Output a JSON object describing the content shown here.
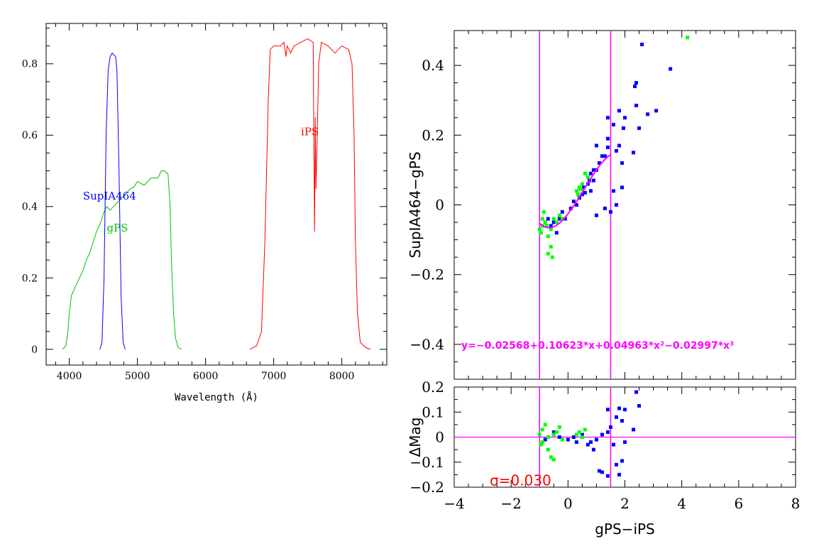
{
  "chart_data": [
    {
      "type": "line",
      "xlabel": "Wavelength (Å)",
      "ylabel": "",
      "xlim": [
        3660,
        8660
      ],
      "ylim": [
        -0.044,
        0.913
      ],
      "xticks": [
        4000,
        5000,
        6000,
        7000,
        8000
      ],
      "yticks": [
        0,
        0.2,
        0.4,
        0.6,
        0.8
      ],
      "ytick_labels": [
        "0",
        "0.2",
        "0.4",
        "0.6",
        "0.8"
      ],
      "grid": false,
      "series": [
        {
          "name": "gPS",
          "color": "#00c000",
          "label_at": [
            4550,
            0.33
          ],
          "x": [
            3900,
            3950,
            3980,
            4000,
            4030,
            4100,
            4200,
            4250,
            4300,
            4350,
            4400,
            4450,
            4500,
            4550,
            4600,
            4650,
            4700,
            4800,
            4900,
            4950,
            5000,
            5100,
            5200,
            5300,
            5350,
            5400,
            5450,
            5480,
            5500,
            5530,
            5560,
            5600,
            5650
          ],
          "y": [
            0,
            0.01,
            0.05,
            0.1,
            0.15,
            0.18,
            0.22,
            0.25,
            0.27,
            0.3,
            0.33,
            0.35,
            0.38,
            0.4,
            0.39,
            0.4,
            0.41,
            0.43,
            0.45,
            0.455,
            0.47,
            0.46,
            0.48,
            0.48,
            0.5,
            0.5,
            0.49,
            0.4,
            0.25,
            0.1,
            0.03,
            0.005,
            0
          ]
        },
        {
          "name": "SupIA464",
          "color": "#0000ff",
          "label_at": [
            4200,
            0.42
          ],
          "x": [
            4450,
            4480,
            4510,
            4540,
            4570,
            4600,
            4630,
            4680,
            4700,
            4730,
            4760,
            4790,
            4820
          ],
          "y": [
            0,
            0.02,
            0.2,
            0.6,
            0.78,
            0.82,
            0.83,
            0.82,
            0.78,
            0.5,
            0.15,
            0.02,
            0
          ]
        },
        {
          "name": "iPS",
          "color": "#ff0000",
          "label_at": [
            7400,
            0.6
          ],
          "x": [
            6650,
            6750,
            6820,
            6870,
            6920,
            6950,
            7000,
            7100,
            7150,
            7180,
            7200,
            7250,
            7300,
            7400,
            7500,
            7580,
            7590,
            7600,
            7610,
            7620,
            7640,
            7660,
            7700,
            7800,
            7900,
            8000,
            8100,
            8150,
            8180,
            8200,
            8230,
            8270,
            8350,
            8420
          ],
          "y": [
            0,
            0.01,
            0.05,
            0.3,
            0.7,
            0.84,
            0.85,
            0.85,
            0.86,
            0.82,
            0.85,
            0.83,
            0.85,
            0.86,
            0.87,
            0.86,
            0.55,
            0.33,
            0.65,
            0.45,
            0.6,
            0.8,
            0.86,
            0.85,
            0.83,
            0.85,
            0.84,
            0.8,
            0.6,
            0.3,
            0.1,
            0.02,
            0.005,
            0
          ]
        }
      ]
    },
    {
      "type": "scatter",
      "xlabel": "",
      "ylabel": "SupIA464−gPS",
      "xlim": [
        -4,
        8
      ],
      "ylim": [
        -0.5,
        0.5
      ],
      "yticks": [
        -0.4,
        -0.2,
        0,
        0.2,
        0.4
      ],
      "ytick_labels": [
        "−0.4",
        "−0.2",
        "0",
        "0.2",
        "0.4"
      ],
      "vlines": [
        -1,
        1.5
      ],
      "line_color": "#ff00ff",
      "fit": {
        "coefficients": [
          -0.02568,
          0.10623,
          0.04963,
          -0.02997
        ],
        "range": [
          -1,
          1.5
        ],
        "label": "y=−0.02568+0.10623*x+0.04963*x²−0.02997*x³",
        "label_at": [
          -3.75,
          -0.4
        ]
      },
      "series": [
        {
          "color": "#0000ff",
          "points": [
            [
              2.6,
              0.46
            ],
            [
              3.6,
              0.39
            ],
            [
              2.4,
              0.35
            ],
            [
              2.35,
              0.34
            ],
            [
              3.1,
              0.27
            ],
            [
              2.8,
              0.26
            ],
            [
              1.8,
              0.27
            ],
            [
              2.4,
              0.285
            ],
            [
              2.0,
              0.25
            ],
            [
              1.4,
              0.25
            ],
            [
              1.6,
              0.23
            ],
            [
              2.5,
              0.22
            ],
            [
              1.95,
              0.22
            ],
            [
              1.4,
              0.19
            ],
            [
              1.8,
              0.17
            ],
            [
              2.3,
              0.15
            ],
            [
              1.4,
              0.165
            ],
            [
              1.7,
              0.155
            ],
            [
              1.0,
              0.17
            ],
            [
              1.2,
              0.14
            ],
            [
              1.3,
              0.14
            ],
            [
              1.9,
              0.12
            ],
            [
              0.9,
              0.1
            ],
            [
              1.0,
              0.1
            ],
            [
              1.1,
              0.12
            ],
            [
              0.8,
              0.09
            ],
            [
              0.7,
              0.06
            ],
            [
              0.75,
              0.07
            ],
            [
              0.9,
              0.07
            ],
            [
              0.8,
              0.04
            ],
            [
              1.6,
              0.04
            ],
            [
              1.9,
              0.05
            ],
            [
              0.5,
              0.03
            ],
            [
              0.55,
              0.05
            ],
            [
              0.6,
              0.035
            ],
            [
              0.2,
              0.01
            ],
            [
              0.1,
              -0.01
            ],
            [
              -0.2,
              -0.02
            ],
            [
              -0.3,
              -0.04
            ],
            [
              -0.5,
              -0.05
            ],
            [
              -0.6,
              -0.06
            ],
            [
              -0.4,
              -0.08
            ],
            [
              -0.1,
              -0.04
            ],
            [
              1.3,
              -0.01
            ],
            [
              1.5,
              -0.02
            ],
            [
              1.0,
              -0.03
            ],
            [
              1.7,
              0.0
            ],
            [
              0.4,
              0.02
            ],
            [
              0.3,
              0.0
            ],
            [
              -0.7,
              -0.04
            ]
          ]
        },
        {
          "color": "#00ff00",
          "points": [
            [
              4.2,
              0.48
            ],
            [
              0.6,
              0.09
            ],
            [
              0.4,
              0.05
            ],
            [
              0.3,
              0.04
            ],
            [
              0.35,
              0.03
            ],
            [
              0.5,
              0.06
            ],
            [
              -0.3,
              -0.03
            ],
            [
              -0.5,
              -0.04
            ],
            [
              -0.8,
              -0.05
            ],
            [
              -0.9,
              -0.06
            ],
            [
              -1.0,
              -0.07
            ],
            [
              -0.95,
              -0.08
            ],
            [
              -0.7,
              -0.09
            ],
            [
              -0.6,
              -0.12
            ],
            [
              -0.55,
              -0.15
            ],
            [
              -0.7,
              -0.14
            ],
            [
              -0.85,
              -0.02
            ],
            [
              -0.6,
              -0.07
            ],
            [
              -0.4,
              -0.05
            ],
            [
              -0.2,
              -0.04
            ],
            [
              -0.9,
              -0.04
            ],
            [
              -0.75,
              -0.06
            ],
            [
              0.7,
              0.08
            ],
            [
              0.45,
              0.045
            ]
          ]
        }
      ]
    },
    {
      "type": "scatter",
      "xlabel": "gPS−iPS",
      "ylabel": "ΔMag",
      "xlim": [
        -4,
        8
      ],
      "ylim": [
        -0.2,
        0.2
      ],
      "xticks": [
        -4,
        -2,
        0,
        2,
        4,
        6,
        8
      ],
      "xtick_labels": [
        "−4",
        "−2",
        "0",
        "2",
        "4",
        "6",
        "8"
      ],
      "yticks": [
        -0.2,
        -0.1,
        0,
        0.1,
        0.2
      ],
      "ytick_labels": [
        "−0.2",
        "−0.1",
        "0",
        "0.1",
        "0.2"
      ],
      "vlines": [
        -1,
        1.5
      ],
      "hline": 0,
      "line_color": "#ff00ff",
      "annotation": {
        "text": "σ=0.030",
        "color": "#ff0000",
        "at": [
          -2.75,
          -0.17
        ]
      },
      "series": [
        {
          "color": "#0000ff",
          "points": [
            [
              2.4,
              0.18
            ],
            [
              2.5,
              0.125
            ],
            [
              1.4,
              0.11
            ],
            [
              1.8,
              0.115
            ],
            [
              2.0,
              0.11
            ],
            [
              1.7,
              0.08
            ],
            [
              1.9,
              0.065
            ],
            [
              2.3,
              0.03
            ],
            [
              1.5,
              0.04
            ],
            [
              1.4,
              0.02
            ],
            [
              1.2,
              0.01
            ],
            [
              1.0,
              -0.01
            ],
            [
              0.8,
              -0.02
            ],
            [
              0.7,
              -0.03
            ],
            [
              0.9,
              -0.05
            ],
            [
              1.1,
              -0.135
            ],
            [
              1.2,
              -0.14
            ],
            [
              1.4,
              -0.155
            ],
            [
              1.8,
              -0.15
            ],
            [
              1.7,
              -0.11
            ],
            [
              1.9,
              -0.095
            ],
            [
              2.0,
              -0.02
            ],
            [
              1.6,
              -0.03
            ],
            [
              0.5,
              0.01
            ],
            [
              0.2,
              0.0
            ],
            [
              -0.3,
              0.0
            ],
            [
              -0.5,
              0.02
            ],
            [
              0.0,
              -0.01
            ],
            [
              0.3,
              -0.02
            ],
            [
              -0.8,
              -0.01
            ]
          ]
        },
        {
          "color": "#00ff00",
          "points": [
            [
              -1,
              0.01
            ],
            [
              -0.9,
              0.03
            ],
            [
              -0.8,
              0.05
            ],
            [
              -0.7,
              -0.05
            ],
            [
              -0.6,
              -0.08
            ],
            [
              -0.5,
              -0.09
            ],
            [
              -0.9,
              -0.02
            ],
            [
              -0.4,
              0.02
            ],
            [
              -0.3,
              0.04
            ],
            [
              -0.2,
              -0.01
            ],
            [
              0.4,
              0.02
            ],
            [
              0.6,
              0.03
            ],
            [
              0.5,
              0.0
            ],
            [
              0.3,
              0.01
            ],
            [
              -0.95,
              -0.03
            ],
            [
              -0.7,
              0.0
            ],
            [
              -0.5,
              0.01
            ]
          ]
        }
      ]
    }
  ]
}
